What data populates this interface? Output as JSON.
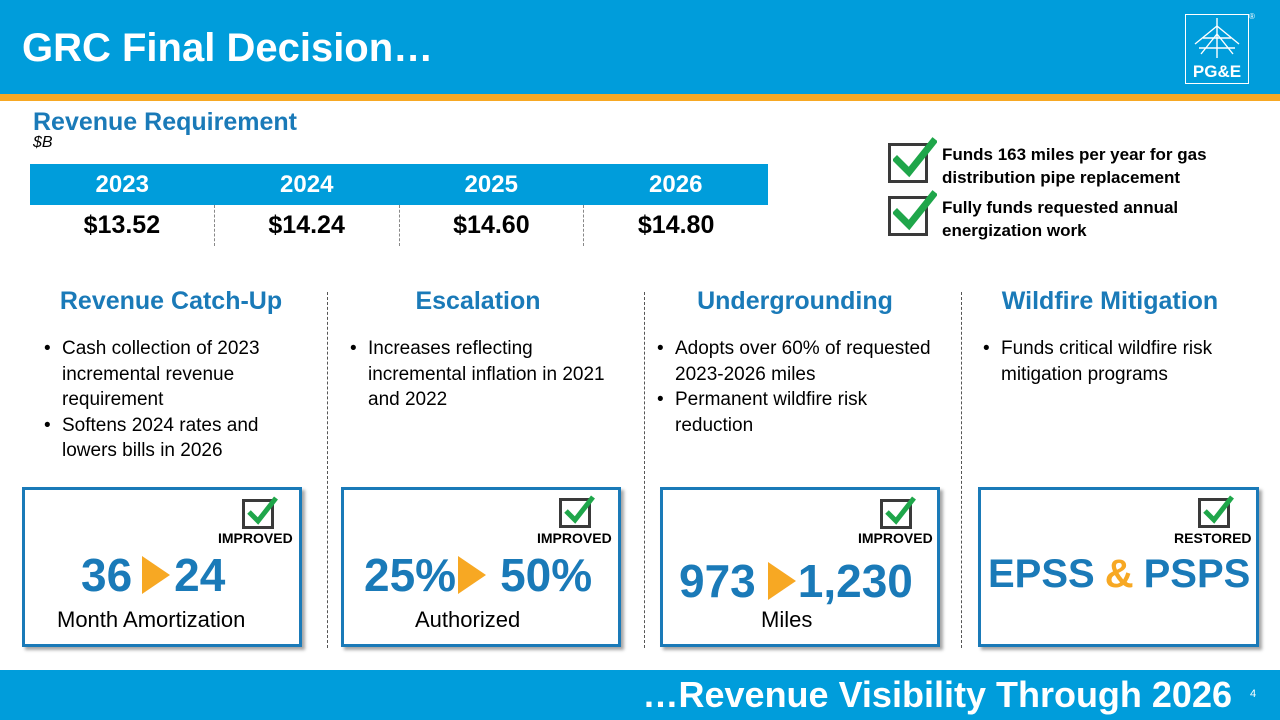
{
  "title": "GRC Final Decision…",
  "logo": {
    "text": "PG&E",
    "registered": "®"
  },
  "revenue": {
    "title": "Revenue Requirement",
    "unit": "$B",
    "years": [
      "2023",
      "2024",
      "2025",
      "2026"
    ],
    "values": [
      "$13.52",
      "$14.24",
      "$14.60",
      "$14.80"
    ]
  },
  "highlights": [
    {
      "text": "Funds 163 miles per year for gas distribution pipe replacement"
    },
    {
      "text": "Fully funds requested annual energization work"
    }
  ],
  "columns": [
    {
      "title": "Revenue Catch-Up",
      "bullets": [
        "Cash collection of 2023 incremental revenue requirement",
        "Softens 2024 rates and lowers bills in 2026"
      ],
      "status": "IMPROVED",
      "from": "36",
      "to": "24",
      "caption": "Month Amortization"
    },
    {
      "title": "Escalation",
      "bullets": [
        "Increases reflecting incremental inflation in 2021 and 2022"
      ],
      "status": "IMPROVED",
      "from": "25%",
      "to": "50%",
      "caption": "Authorized"
    },
    {
      "title": "Undergrounding",
      "bullets": [
        "Adopts over 60% of requested 2023-2026 miles",
        "Permanent wildfire risk reduction"
      ],
      "status": "IMPROVED",
      "from": "973",
      "to": "1,230",
      "caption": "Miles"
    },
    {
      "title": "Wildfire Mitigation",
      "bullets": [
        "Funds critical wildfire risk mitigation programs"
      ],
      "status": "RESTORED",
      "left": "EPSS",
      "amp": "&",
      "right": "PSPS"
    }
  ],
  "footer": {
    "text": "…Revenue Visibility Through 2026",
    "page": "4"
  },
  "colors": {
    "brand_blue": "#009ddb",
    "accent_orange": "#f7a823",
    "title_blue": "#1a7ab8",
    "check_green": "#1fa64a"
  }
}
